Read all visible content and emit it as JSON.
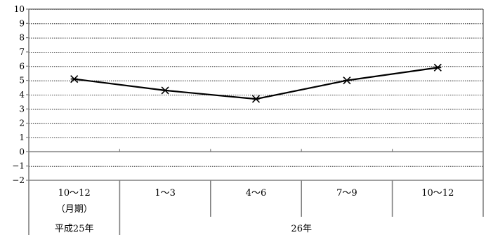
{
  "chart_data": {
    "type": "line",
    "categories": [
      "10～12",
      "1～3",
      "4～6",
      "7～9",
      "10～12"
    ],
    "values": [
      5.1,
      4.3,
      3.7,
      5.0,
      5.9
    ],
    "ylim": [
      -2,
      10
    ],
    "yticks": [
      "10",
      "9",
      "8",
      "7",
      "6",
      "5",
      "4",
      "3",
      "2",
      "1",
      "0",
      "−1",
      "−2"
    ],
    "first_category_sublabel": "（月期）",
    "year_groups": [
      {
        "label": "平成25年",
        "span": 1
      },
      {
        "label": "26年",
        "span": 4
      }
    ],
    "grid": "horizontal-dotted",
    "marker": "asterisk",
    "colors": {
      "line": "#000000",
      "axis": "#808080",
      "grid": "#000000"
    }
  }
}
